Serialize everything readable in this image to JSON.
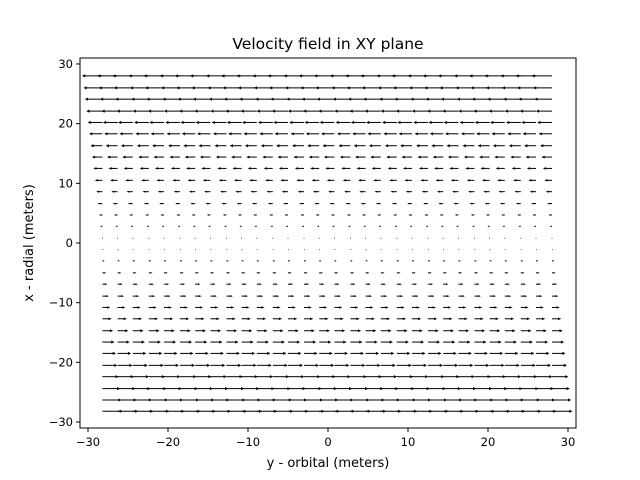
{
  "chart_data": {
    "type": "quiver",
    "title": "Velocity field in XY plane",
    "xlabel": "y - orbital (meters)",
    "ylabel": "x - radial (meters)",
    "xlim": [
      -31,
      31
    ],
    "ylim": [
      -31,
      31
    ],
    "xticks": [
      -30,
      -20,
      -10,
      0,
      10,
      20,
      30
    ],
    "yticks": [
      -30,
      -20,
      -10,
      0,
      10,
      20,
      30
    ],
    "xtick_labels": [
      "−30",
      "−20",
      "−10",
      "0",
      "10",
      "20",
      "30"
    ],
    "ytick_labels": [
      "−30",
      "−20",
      "−10",
      "0",
      "10",
      "20",
      "30"
    ],
    "grid_y": [
      -28.2,
      -26.3,
      -24.4,
      -22.4,
      -20.5,
      -18.5,
      -16.6,
      -14.7,
      -12.7,
      -10.8,
      -8.9,
      -6.9,
      -5.0,
      -3.0,
      -1.1,
      0.8,
      2.8,
      4.7,
      6.6,
      8.6,
      10.5,
      12.5,
      14.4,
      16.3,
      18.3,
      20.2,
      22.1,
      24.1,
      26.0,
      28.0
    ],
    "grid_x": [
      -28.2,
      -26.3,
      -24.4,
      -22.4,
      -20.5,
      -18.5,
      -16.6,
      -14.7,
      -12.7,
      -10.8,
      -8.9,
      -6.9,
      -5.0,
      -3.0,
      -1.1,
      0.8,
      2.8,
      4.7,
      6.6,
      8.6,
      10.5,
      12.5,
      14.4,
      16.3,
      18.3,
      20.2,
      22.1,
      24.1,
      26.0,
      28.0
    ],
    "velocity_model": "u = -0.1 * x_radial, v = 0",
    "grid_lines": false
  }
}
